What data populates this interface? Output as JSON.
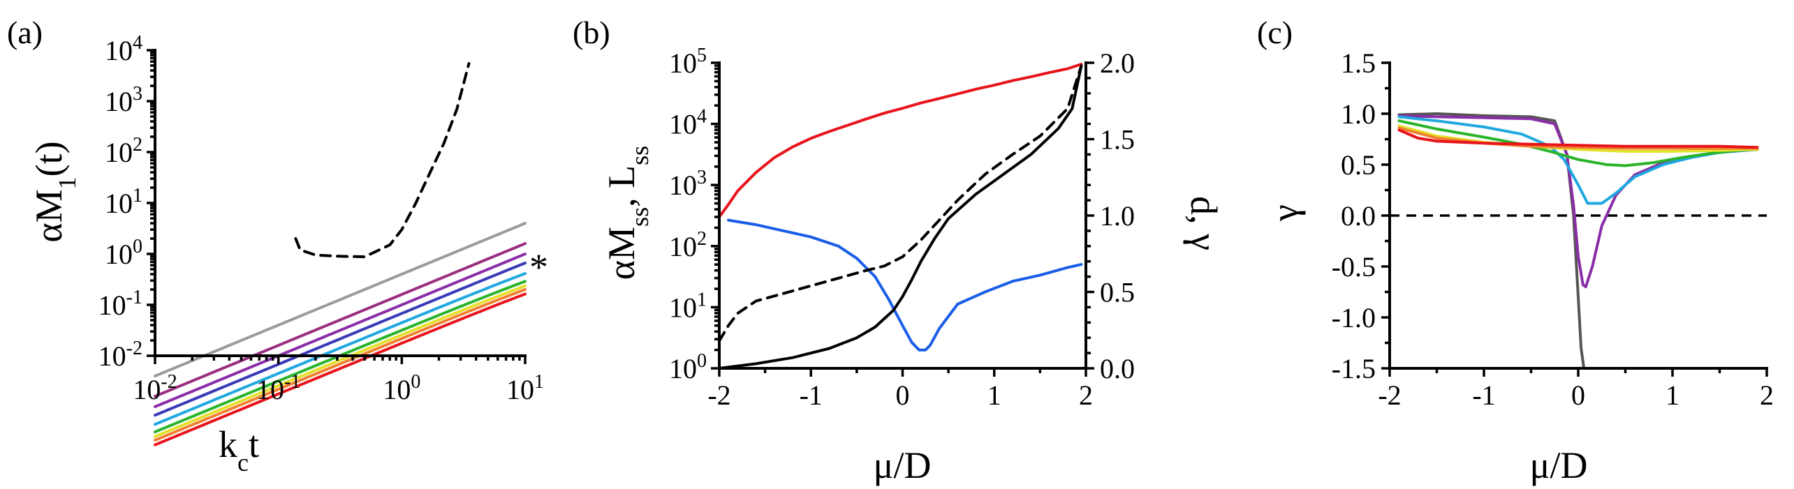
{
  "chart_data": [
    {
      "panel": "(a)",
      "type": "line",
      "xlabel_base": "k",
      "xlabel_sub": "c",
      "xlabel_tail": "t",
      "ylabel_base": "αM",
      "ylabel_sub": "1",
      "ylabel_tail": "(t)",
      "xscale": "log",
      "yscale": "log",
      "xlim": [
        0.01,
        10
      ],
      "ylim": [
        0.01,
        10000
      ],
      "xticks": [
        {
          "value": 0.01,
          "base": "10",
          "exp": "-2"
        },
        {
          "value": 0.1,
          "base": "10",
          "exp": "-1"
        },
        {
          "value": 1,
          "base": "10",
          "exp": "0"
        },
        {
          "value": 10,
          "base": "10",
          "exp": "1"
        }
      ],
      "yticks": [
        {
          "value": 0.01,
          "base": "10",
          "exp": "-2"
        },
        {
          "value": 0.1,
          "base": "10",
          "exp": "-1"
        },
        {
          "value": 1,
          "base": "10",
          "exp": "0"
        },
        {
          "value": 10,
          "base": "10",
          "exp": "1"
        },
        {
          "value": 100,
          "base": "10",
          "exp": "2"
        },
        {
          "value": 1000,
          "base": "10",
          "exp": "3"
        },
        {
          "value": 10000,
          "base": "10",
          "exp": "4"
        }
      ],
      "marker": "*",
      "marker_series_index": 5,
      "series": [
        {
          "color": "#e8141b",
          "a": 0.0178,
          "b": 1.0
        },
        {
          "color": "#f07f2f",
          "a": 0.022,
          "b": 1.15
        },
        {
          "color": "#e4e02a",
          "a": 0.026,
          "b": 1.3
        },
        {
          "color": "#2ab42a",
          "a": 0.032,
          "b": 1.55
        },
        {
          "color": "#1fa8e0",
          "a": 0.045,
          "b": 2.5
        },
        {
          "color": "#3a3ab8",
          "a": 0.068,
          "b": 13.5
        },
        {
          "color": "#8a2ea8",
          "a": 0.1,
          "b": 270
        },
        {
          "color": "#9a2e80",
          "a": 0.16,
          "b": 1300
        },
        {
          "color": "#9b9b9b",
          "a": 0.4,
          "b": 5000
        }
      ],
      "dashed_line": {
        "color": "#000000",
        "x": [
          0.138,
          0.15,
          0.2,
          0.3,
          0.5,
          0.8,
          1.0,
          1.3,
          1.7,
          2.2,
          2.8,
          3.5
        ],
        "y": [
          2.0,
          1.2,
          0.95,
          0.9,
          0.88,
          1.5,
          3,
          10,
          40,
          150,
          700,
          5500
        ]
      }
    },
    {
      "panel": "(b)",
      "type": "line",
      "xlabel": "μ/D",
      "ylabel_base": "αM",
      "ylabel_sub": "ss",
      "ylabel_mid": ", L",
      "ylabel_sub2": "ss",
      "y2label": "d, γ",
      "xlim": [
        -2,
        2
      ],
      "ylim": [
        1,
        100000
      ],
      "y2lim": [
        0,
        2
      ],
      "yscale": "log",
      "xticks": [
        {
          "value": -2,
          "label": "-2"
        },
        {
          "value": -1,
          "label": "-1"
        },
        {
          "value": 0,
          "label": "0"
        },
        {
          "value": 1,
          "label": "1"
        },
        {
          "value": 2,
          "label": "2"
        }
      ],
      "yticks": [
        {
          "value": 1,
          "base": "10",
          "exp": "0"
        },
        {
          "value": 10,
          "base": "10",
          "exp": "1"
        },
        {
          "value": 100,
          "base": "10",
          "exp": "2"
        },
        {
          "value": 1000,
          "base": "10",
          "exp": "3"
        },
        {
          "value": 10000,
          "base": "10",
          "exp": "4"
        },
        {
          "value": 100000,
          "base": "10",
          "exp": "5"
        }
      ],
      "y2ticks": [
        {
          "value": 0,
          "label": "0.0"
        },
        {
          "value": 0.5,
          "label": "0.5"
        },
        {
          "value": 1.0,
          "label": "1.0"
        },
        {
          "value": 1.5,
          "label": "1.5"
        },
        {
          "value": 2.0,
          "label": "2.0"
        }
      ],
      "series": [
        {
          "color": "#e8141b",
          "axis": "left",
          "style": "solid",
          "x": [
            -2,
            -1.9,
            -1.8,
            -1.6,
            -1.4,
            -1.2,
            -1.0,
            -0.8,
            -0.6,
            -0.4,
            -0.2,
            0,
            0.2,
            0.4,
            0.6,
            0.8,
            1.0,
            1.2,
            1.4,
            1.6,
            1.8,
            1.95
          ],
          "y": [
            300,
            480,
            800,
            1600,
            2800,
            4200,
            5800,
            7500,
            9500,
            12000,
            15000,
            18000,
            22000,
            26000,
            31000,
            37000,
            43000,
            51000,
            59000,
            69000,
            80000,
            95000
          ]
        },
        {
          "color": "#1a5ee8",
          "axis": "right",
          "style": "solid",
          "x": [
            -1.9,
            -1.6,
            -1.3,
            -1.0,
            -0.7,
            -0.5,
            -0.3,
            -0.15,
            0,
            0.1,
            0.18,
            0.25,
            0.3,
            0.4,
            0.6,
            0.9,
            1.2,
            1.5,
            1.8,
            1.95
          ],
          "y": [
            0.97,
            0.94,
            0.9,
            0.86,
            0.8,
            0.72,
            0.6,
            0.45,
            0.28,
            0.17,
            0.12,
            0.12,
            0.15,
            0.26,
            0.42,
            0.5,
            0.57,
            0.61,
            0.66,
            0.68
          ]
        },
        {
          "color": "#000000",
          "axis": "right",
          "style": "solid",
          "x": [
            -2,
            -1.6,
            -1.2,
            -0.8,
            -0.5,
            -0.3,
            -0.1,
            0,
            0.1,
            0.2,
            0.35,
            0.5,
            0.8,
            1.1,
            1.4,
            1.7,
            1.85,
            1.95
          ],
          "y": [
            0.0,
            0.03,
            0.07,
            0.13,
            0.2,
            0.27,
            0.38,
            0.47,
            0.58,
            0.7,
            0.85,
            0.98,
            1.14,
            1.27,
            1.4,
            1.57,
            1.7,
            1.98
          ]
        },
        {
          "color": "#000000",
          "axis": "right",
          "style": "dashed",
          "x": [
            -2,
            -1.9,
            -1.8,
            -1.6,
            -1.3,
            -1.0,
            -0.7,
            -0.4,
            -0.2,
            0,
            0.2,
            0.4,
            0.6,
            0.9,
            1.2,
            1.5,
            1.8,
            1.95
          ],
          "y": [
            0.18,
            0.28,
            0.36,
            0.44,
            0.49,
            0.54,
            0.59,
            0.64,
            0.67,
            0.73,
            0.84,
            0.97,
            1.1,
            1.27,
            1.4,
            1.52,
            1.7,
            1.98
          ]
        }
      ]
    },
    {
      "panel": "(c)",
      "type": "line",
      "xlabel": "μ/D",
      "ylabel": "γ",
      "xlim": [
        -2,
        2
      ],
      "ylim": [
        -1.5,
        1.5
      ],
      "xticks": [
        {
          "value": -2,
          "label": "-2"
        },
        {
          "value": -1,
          "label": "-1"
        },
        {
          "value": 0,
          "label": "0"
        },
        {
          "value": 1,
          "label": "1"
        },
        {
          "value": 2,
          "label": "2"
        }
      ],
      "yticks": [
        {
          "value": -1.5,
          "label": "-1.5"
        },
        {
          "value": -1.0,
          "label": "-1.0"
        },
        {
          "value": -0.5,
          "label": "-0.5"
        },
        {
          "value": 0.0,
          "label": "0.0"
        },
        {
          "value": 0.5,
          "label": "0.5"
        },
        {
          "value": 1.0,
          "label": "1.0"
        },
        {
          "value": 1.5,
          "label": "1.5"
        }
      ],
      "zero_line": {
        "value": 0,
        "color": "#000000"
      },
      "series": [
        {
          "color": "#555555",
          "x": [
            -1.9,
            -1.5,
            -1.0,
            -0.5,
            -0.25,
            -0.12,
            -0.05,
            0.0,
            0.03,
            0.06,
            0.1
          ],
          "y": [
            0.99,
            1.0,
            0.98,
            0.97,
            0.93,
            0.6,
            0.0,
            -0.8,
            -1.3,
            -1.5,
            -1.5
          ]
        },
        {
          "color": "#8a2ea8",
          "x": [
            -1.9,
            -1.5,
            -1.0,
            -0.5,
            -0.25,
            -0.12,
            -0.05,
            0.0,
            0.05,
            0.08,
            0.15,
            0.25,
            0.4,
            0.6,
            0.9,
            1.2,
            1.5,
            1.9
          ],
          "y": [
            0.98,
            0.97,
            0.96,
            0.95,
            0.9,
            0.6,
            0.1,
            -0.4,
            -0.68,
            -0.7,
            -0.5,
            -0.1,
            0.2,
            0.4,
            0.52,
            0.58,
            0.62,
            0.65
          ]
        },
        {
          "color": "#1fa8e0",
          "x": [
            -1.9,
            -1.5,
            -1.0,
            -0.6,
            -0.3,
            -0.15,
            0.0,
            0.1,
            0.25,
            0.4,
            0.6,
            0.9,
            1.2,
            1.5,
            1.9
          ],
          "y": [
            0.97,
            0.93,
            0.87,
            0.8,
            0.68,
            0.55,
            0.3,
            0.12,
            0.12,
            0.22,
            0.38,
            0.5,
            0.57,
            0.62,
            0.65
          ]
        },
        {
          "color": "#2ab42a",
          "x": [
            -1.9,
            -1.5,
            -1.0,
            -0.6,
            -0.3,
            0.0,
            0.3,
            0.5,
            0.8,
            1.1,
            1.4,
            1.7,
            1.9
          ],
          "y": [
            0.93,
            0.85,
            0.77,
            0.7,
            0.63,
            0.55,
            0.5,
            0.49,
            0.52,
            0.57,
            0.61,
            0.64,
            0.65
          ]
        },
        {
          "color": "#e4e02a",
          "x": [
            -1.9,
            -1.5,
            -1.0,
            -0.5,
            0.0,
            0.5,
            1.0,
            1.5,
            1.9
          ],
          "y": [
            0.88,
            0.78,
            0.72,
            0.68,
            0.65,
            0.63,
            0.63,
            0.64,
            0.65
          ]
        },
        {
          "color": "#f07f2f",
          "x": [
            -1.9,
            -1.5,
            -1.0,
            -0.5,
            0.0,
            0.5,
            1.0,
            1.5,
            1.9
          ],
          "y": [
            0.86,
            0.76,
            0.71,
            0.68,
            0.67,
            0.66,
            0.66,
            0.66,
            0.66
          ]
        },
        {
          "color": "#e8141b",
          "x": [
            -1.9,
            -1.7,
            -1.5,
            -1.0,
            -0.5,
            0.0,
            0.5,
            1.0,
            1.5,
            1.9
          ],
          "y": [
            0.84,
            0.76,
            0.73,
            0.71,
            0.7,
            0.69,
            0.68,
            0.68,
            0.68,
            0.67
          ]
        }
      ]
    }
  ]
}
